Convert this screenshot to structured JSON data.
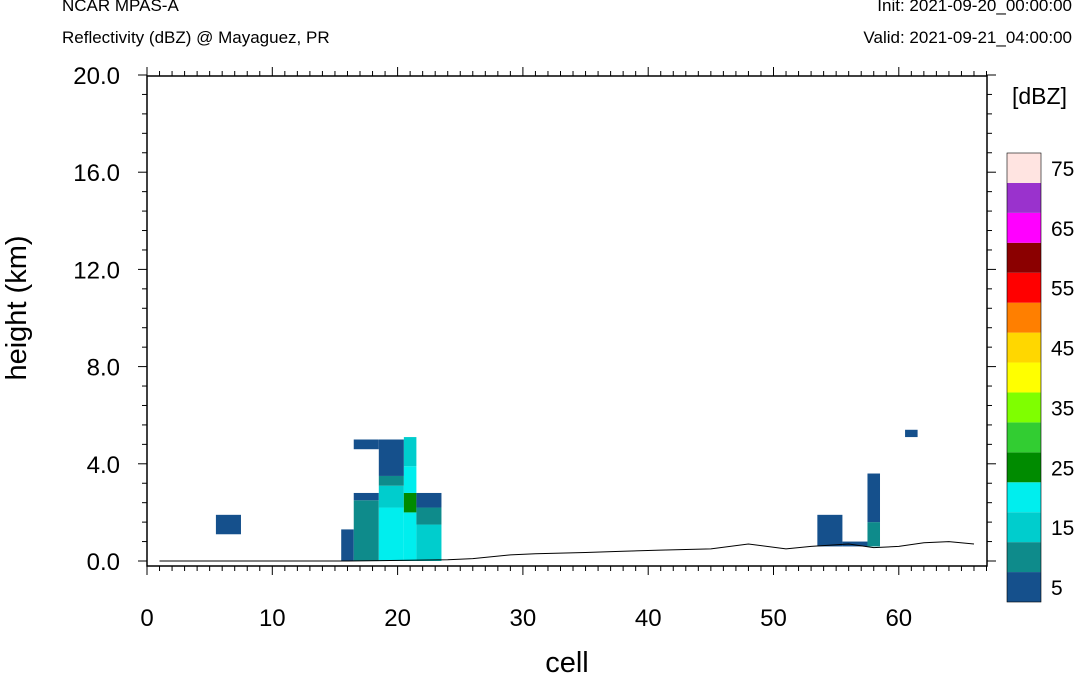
{
  "header": {
    "model": "NCAR MPAS-A",
    "field": "Reflectivity (dBZ) @ Mayaguez, PR",
    "init": "Init: 2021-09-20_00:00:00",
    "valid": "Valid: 2021-09-21_04:00:00"
  },
  "chart_data": {
    "type": "heatmap",
    "title": "Reflectivity (dBZ) @ Mayaguez, PR",
    "xlabel": "cell",
    "ylabel": "height (km)",
    "xlim": [
      0,
      67
    ],
    "ylim": [
      -0.2,
      20.0
    ],
    "x_ticks": [
      "0",
      "10",
      "20",
      "30",
      "40",
      "50",
      "60"
    ],
    "y_ticks": [
      "0.0",
      "4.0",
      "8.0",
      "12.0",
      "16.0",
      "20.0"
    ],
    "colorbar": {
      "title": "[dBZ]",
      "levels": [
        5,
        10,
        15,
        20,
        25,
        30,
        35,
        40,
        45,
        50,
        55,
        60,
        65,
        70,
        75
      ],
      "tick_labels": [
        "5",
        "15",
        "25",
        "35",
        "45",
        "55",
        "65",
        "75"
      ],
      "colors": [
        "#15508c",
        "#0e8b8b",
        "#00cdcd",
        "#00eeee",
        "#008b00",
        "#32cd32",
        "#7fff00",
        "#ffff00",
        "#ffd700",
        "#ff7f00",
        "#ff0000",
        "#8b0000",
        "#ff00ff",
        "#9a32cd",
        "#ffe4e1"
      ]
    },
    "cells": [
      {
        "x0": 5.5,
        "x1": 7.5,
        "y0": 1.1,
        "y1": 1.9,
        "dbz": 5
      },
      {
        "x0": 15.5,
        "x1": 16.5,
        "y0": 0.0,
        "y1": 1.3,
        "dbz": 5
      },
      {
        "x0": 16.5,
        "x1": 18.5,
        "y0": 0.0,
        "y1": 2.5,
        "dbz": 10
      },
      {
        "x0": 16.5,
        "x1": 18.5,
        "y0": 2.5,
        "y1": 2.8,
        "dbz": 5
      },
      {
        "x0": 16.5,
        "x1": 18.5,
        "y0": 4.6,
        "y1": 5.0,
        "dbz": 5
      },
      {
        "x0": 18.5,
        "x1": 20.5,
        "y0": 0.0,
        "y1": 2.2,
        "dbz": 20
      },
      {
        "x0": 18.5,
        "x1": 20.5,
        "y0": 2.2,
        "y1": 3.1,
        "dbz": 15
      },
      {
        "x0": 18.5,
        "x1": 20.5,
        "y0": 3.1,
        "y1": 3.5,
        "dbz": 10
      },
      {
        "x0": 18.5,
        "x1": 20.5,
        "y0": 3.5,
        "y1": 5.0,
        "dbz": 5
      },
      {
        "x0": 20.5,
        "x1": 21.5,
        "y0": 0.0,
        "y1": 2.0,
        "dbz": 20
      },
      {
        "x0": 20.5,
        "x1": 21.5,
        "y0": 2.0,
        "y1": 2.8,
        "dbz": 25
      },
      {
        "x0": 20.5,
        "x1": 21.5,
        "y0": 2.8,
        "y1": 3.9,
        "dbz": 20
      },
      {
        "x0": 20.5,
        "x1": 21.5,
        "y0": 3.9,
        "y1": 5.1,
        "dbz": 15
      },
      {
        "x0": 21.5,
        "x1": 23.5,
        "y0": 0.0,
        "y1": 1.5,
        "dbz": 15
      },
      {
        "x0": 21.5,
        "x1": 23.5,
        "y0": 1.5,
        "y1": 2.2,
        "dbz": 10
      },
      {
        "x0": 21.5,
        "x1": 23.5,
        "y0": 2.2,
        "y1": 2.8,
        "dbz": 5
      },
      {
        "x0": 53.5,
        "x1": 55.5,
        "y0": 0.6,
        "y1": 1.9,
        "dbz": 5
      },
      {
        "x0": 55.5,
        "x1": 57.5,
        "y0": 0.6,
        "y1": 0.8,
        "dbz": 5
      },
      {
        "x0": 57.5,
        "x1": 58.5,
        "y0": 0.6,
        "y1": 1.6,
        "dbz": 10
      },
      {
        "x0": 57.5,
        "x1": 58.5,
        "y0": 1.6,
        "y1": 3.6,
        "dbz": 5
      },
      {
        "x0": 60.5,
        "x1": 61.5,
        "y0": 5.1,
        "y1": 5.4,
        "dbz": 5
      }
    ],
    "terrain": {
      "x": [
        1,
        16,
        24,
        26,
        29,
        31,
        35,
        38,
        41,
        45,
        48,
        51,
        53,
        56,
        58,
        60,
        62,
        64,
        66
      ],
      "height_km": [
        0.0,
        0.0,
        0.05,
        0.1,
        0.25,
        0.3,
        0.35,
        0.4,
        0.45,
        0.5,
        0.7,
        0.5,
        0.6,
        0.7,
        0.55,
        0.6,
        0.75,
        0.8,
        0.7
      ]
    }
  }
}
